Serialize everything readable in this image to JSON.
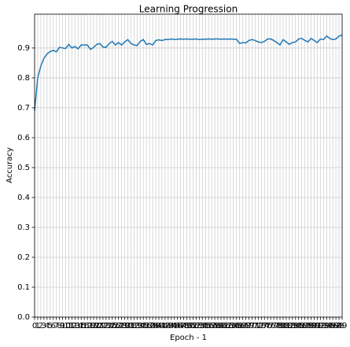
{
  "chart_data": {
    "type": "line",
    "title": "Learning Progression",
    "x_label": "Epoch - 1",
    "y_label": "Accuracy",
    "x": [
      0,
      1,
      2,
      3,
      4,
      5,
      6,
      7,
      8,
      9,
      10,
      11,
      12,
      13,
      14,
      15,
      16,
      17,
      18,
      19,
      20,
      21,
      22,
      23,
      24,
      25,
      26,
      27,
      28,
      29,
      30,
      31,
      32,
      33,
      34,
      35,
      36,
      37,
      38,
      39,
      40,
      41,
      42,
      43,
      44,
      45,
      46,
      47,
      48,
      49,
      50,
      51,
      52,
      53,
      54,
      55,
      56,
      57,
      58,
      59,
      60,
      61,
      62,
      63,
      64,
      65,
      66,
      67,
      68,
      69,
      70,
      71,
      72,
      73,
      74,
      75,
      76,
      77,
      78,
      79,
      80,
      81,
      82,
      83,
      84,
      85,
      86,
      87,
      88,
      89,
      90,
      91,
      92,
      93,
      94,
      95,
      96,
      97,
      98,
      99
    ],
    "series": [
      {
        "color": "#1f77b4",
        "values": [
          0.69,
          0.8,
          0.84,
          0.865,
          0.88,
          0.888,
          0.892,
          0.887,
          0.902,
          0.9,
          0.898,
          0.912,
          0.9,
          0.905,
          0.897,
          0.91,
          0.91,
          0.91,
          0.895,
          0.902,
          0.912,
          0.915,
          0.903,
          0.902,
          0.915,
          0.922,
          0.91,
          0.918,
          0.91,
          0.92,
          0.928,
          0.915,
          0.91,
          0.908,
          0.922,
          0.928,
          0.912,
          0.915,
          0.91,
          0.925,
          0.927,
          0.925,
          0.928,
          0.928,
          0.93,
          0.928,
          0.929,
          0.93,
          0.929,
          0.93,
          0.929,
          0.929,
          0.93,
          0.928,
          0.929,
          0.929,
          0.93,
          0.929,
          0.93,
          0.93,
          0.929,
          0.93,
          0.929,
          0.93,
          0.929,
          0.929,
          0.915,
          0.918,
          0.917,
          0.925,
          0.928,
          0.925,
          0.92,
          0.918,
          0.922,
          0.93,
          0.93,
          0.925,
          0.918,
          0.91,
          0.928,
          0.92,
          0.912,
          0.918,
          0.92,
          0.93,
          0.932,
          0.925,
          0.92,
          0.932,
          0.925,
          0.918,
          0.93,
          0.928,
          0.94,
          0.932,
          0.928,
          0.93,
          0.94,
          0.943
        ]
      }
    ],
    "xlim": [
      0,
      99
    ],
    "xticks": [
      0,
      1,
      2,
      3,
      4,
      5,
      6,
      7,
      8,
      9,
      10,
      11,
      12,
      13,
      14,
      15,
      16,
      17,
      18,
      19,
      20,
      21,
      22,
      23,
      24,
      25,
      26,
      27,
      28,
      29,
      30,
      31,
      32,
      33,
      34,
      35,
      36,
      37,
      38,
      39,
      40,
      41,
      42,
      43,
      44,
      45,
      46,
      47,
      48,
      49,
      50,
      51,
      52,
      53,
      54,
      55,
      56,
      57,
      58,
      59,
      60,
      61,
      62,
      63,
      64,
      65,
      66,
      67,
      68,
      69,
      70,
      71,
      72,
      73,
      74,
      75,
      76,
      77,
      78,
      79,
      80,
      81,
      82,
      83,
      84,
      85,
      86,
      87,
      88,
      89,
      90,
      91,
      92,
      93,
      94,
      95,
      96,
      97,
      98,
      99
    ],
    "ylim": [
      0,
      1.013
    ],
    "yticks": [
      {
        "value": 0,
        "label": "0.0"
      },
      0.1,
      0.2,
      0.3,
      0.4,
      0.5,
      0.6,
      0.7,
      0.8,
      0.9
    ],
    "grid": true
  }
}
